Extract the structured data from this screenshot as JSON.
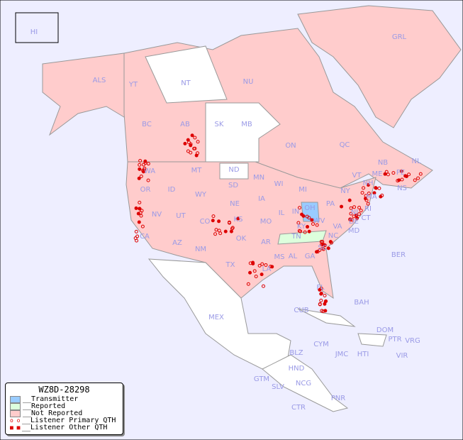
{
  "map": {
    "title": "WZ8D-28298",
    "colors": {
      "ocean": "#eeeeff",
      "transmitter": "#99ccff",
      "reported": "#ddffdd",
      "not_reported": "#ffcccc",
      "unlisted": "#ffffff",
      "dot": "#dd0000",
      "label": "#9a9ae6"
    },
    "regions": [
      "HI",
      "ALS",
      "YT",
      "NT",
      "NU",
      "GRL",
      "BC",
      "AB",
      "SK",
      "MB",
      "ON",
      "QC",
      "NL",
      "NB",
      "NS",
      "PE",
      "WA",
      "OR",
      "ID",
      "MT",
      "WY",
      "ND",
      "SD",
      "NE",
      "KS",
      "OK",
      "TX",
      "NV",
      "UT",
      "CO",
      "AZ",
      "NM",
      "CA",
      "MN",
      "IA",
      "MO",
      "AR",
      "LA",
      "WI",
      "IL",
      "MS",
      "MI",
      "IN",
      "OH",
      "KY",
      "TN",
      "AL",
      "GA",
      "FL",
      "SC",
      "NC",
      "VA",
      "WV",
      "PA",
      "NY",
      "VT",
      "NH",
      "ME",
      "MA",
      "CT",
      "RI",
      "NJ",
      "DE",
      "MD",
      "BER",
      "BAH",
      "CUB",
      "MEX",
      "DOM",
      "PTR",
      "VRG",
      "CYM",
      "JMC",
      "HTI",
      "VIR",
      "BLZ",
      "HND",
      "GTM",
      "SLV",
      "NCG",
      "CTR",
      "PNR"
    ]
  },
  "legend": {
    "title": "WZ8D-28298",
    "items": [
      "__Transmitter",
      "__Reported",
      "__Not Reported",
      "__Listener Primary QTH",
      "__Listener Other QTH"
    ]
  }
}
